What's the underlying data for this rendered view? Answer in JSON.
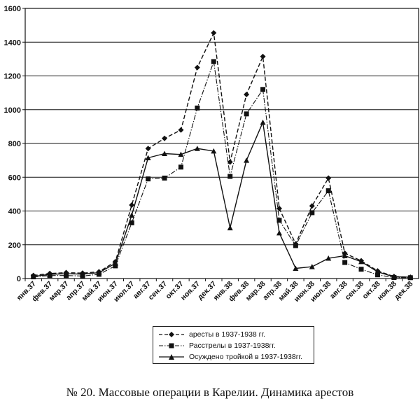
{
  "chart_data": {
    "type": "line",
    "categories": [
      "янв.37",
      "фев.37",
      "мар.37",
      "апр.37",
      "май.37",
      "июн.37",
      "июл.37",
      "авг.37",
      "сен.37",
      "окт.37",
      "ноя.37",
      "дек.37",
      "янв.38",
      "фев.38",
      "мар.38",
      "апр.38",
      "май.38",
      "июн.38",
      "июл.38",
      "авг.38",
      "сен.38",
      "окт.38",
      "ноя.38",
      "дек.38"
    ],
    "ylim": [
      0,
      1600
    ],
    "yticks": [
      0,
      200,
      400,
      600,
      800,
      1000,
      1200,
      1400,
      1600
    ],
    "grid": true,
    "legend_position": "bottom",
    "series": [
      {
        "name": "аресты в 1937-1938 гг.",
        "marker": "diamond",
        "line": "dashed",
        "values": [
          18,
          30,
          35,
          32,
          40,
          100,
          435,
          770,
          830,
          880,
          1250,
          1455,
          690,
          1090,
          1315,
          415,
          205,
          430,
          595,
          150,
          105,
          45,
          12,
          8
        ]
      },
      {
        "name": "Расстрелы в 1937-1938гг.",
        "marker": "square",
        "line": "dashdot",
        "values": [
          10,
          18,
          18,
          15,
          25,
          75,
          330,
          590,
          595,
          660,
          1010,
          1285,
          605,
          975,
          1120,
          345,
          195,
          390,
          520,
          95,
          55,
          22,
          6,
          5
        ]
      },
      {
        "name": "Осуждено тройкой в 1937-1938гг.",
        "marker": "triangle",
        "line": "solid",
        "values": [
          12,
          25,
          28,
          26,
          35,
          90,
          375,
          715,
          740,
          735,
          770,
          755,
          300,
          700,
          925,
          270,
          60,
          70,
          120,
          135,
          100,
          40,
          10,
          8
        ]
      }
    ]
  },
  "caption": "№ 20. Массовые операции в Карелии. Динамика арестов"
}
